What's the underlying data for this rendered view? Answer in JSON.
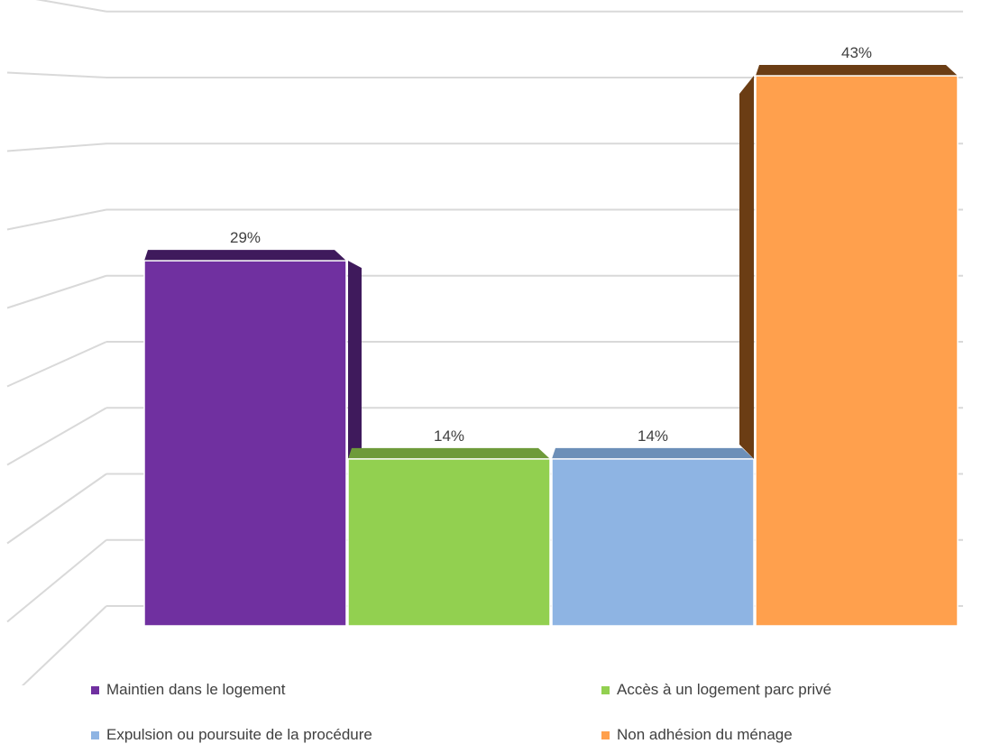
{
  "chart_data": {
    "type": "bar",
    "categories": [
      "Maintien dans le logement",
      "Accès à un logement parc privé",
      "Expulsion ou poursuite de la procédure",
      "Non adhésion du ménage"
    ],
    "values": [
      29,
      14,
      14,
      43
    ],
    "data_labels": [
      "29%",
      "14%",
      "14%",
      "43%"
    ],
    "value_unit": "%",
    "title": "",
    "xlabel": "",
    "ylabel": "",
    "ylim": [
      0,
      45
    ],
    "grid": true,
    "legend_position": "bottom",
    "style": "3d-bar",
    "colors": {
      "Maintien dans le logement": "#7030a0",
      "Accès à un logement parc privé": "#92d050",
      "Expulsion ou poursuite de la procédure": "#8eb4e3",
      "Non adhésion du ménage": "#ffa04d"
    },
    "side_colors": {
      "Maintien dans le logement": "#3f1a5c",
      "Accès à un logement parc privé": "#6e9b3a",
      "Expulsion ou poursuite de la procédure": "#6c8fb8",
      "Non adhésion du ménage": "#6b3d14"
    }
  }
}
